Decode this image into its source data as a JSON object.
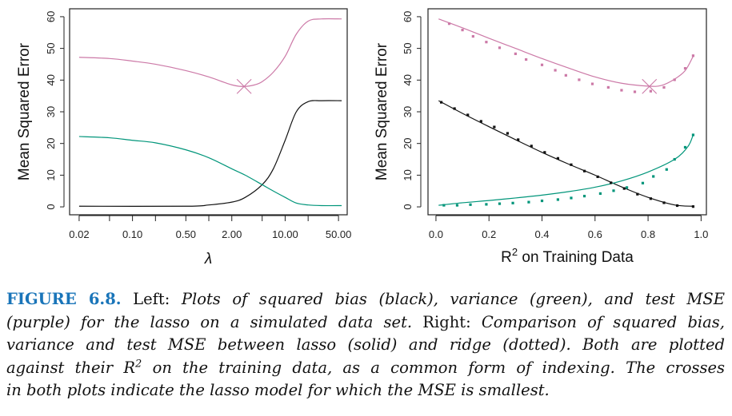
{
  "colors": {
    "bias": "#111111",
    "variance": "#00957a",
    "mse": "#cc79a7",
    "caption_label": "#1a75b9"
  },
  "chart_data": [
    {
      "type": "line",
      "name": "left",
      "xlabel": "λ",
      "ylabel": "Mean Squared Error",
      "xscale": "log",
      "xlim": [
        0.015,
        65
      ],
      "ylim": [
        -2.5,
        62.5
      ],
      "xticks": [
        {
          "v": 0.02,
          "label": "0.02"
        },
        {
          "v": 0.05,
          "label": ""
        },
        {
          "v": 0.1,
          "label": "0.10"
        },
        {
          "v": 0.2,
          "label": ""
        },
        {
          "v": 0.5,
          "label": "0.50"
        },
        {
          "v": 1,
          "label": ""
        },
        {
          "v": 2,
          "label": "2.00"
        },
        {
          "v": 5,
          "label": ""
        },
        {
          "v": 10,
          "label": "10.00"
        },
        {
          "v": 20,
          "label": ""
        },
        {
          "v": 50,
          "label": "50.00"
        }
      ],
      "yticks": [
        {
          "v": 0,
          "label": "0"
        },
        {
          "v": 10,
          "label": "10"
        },
        {
          "v": 20,
          "label": "20"
        },
        {
          "v": 30,
          "label": "30"
        },
        {
          "v": 40,
          "label": "40"
        },
        {
          "v": 50,
          "label": "50"
        },
        {
          "v": 60,
          "label": "60"
        }
      ],
      "series": [
        {
          "name": "Test MSE (lasso)",
          "color_key": "mse",
          "style": "solid",
          "points": [
            [
              0.02,
              47.2
            ],
            [
              0.05,
              46.8
            ],
            [
              0.1,
              46
            ],
            [
              0.2,
              45
            ],
            [
              0.5,
              43
            ],
            [
              1,
              41
            ],
            [
              2,
              38.5
            ],
            [
              2.9,
              38
            ],
            [
              4,
              38.5
            ],
            [
              5,
              39.5
            ],
            [
              7,
              42.5
            ],
            [
              10,
              47.5
            ],
            [
              14,
              54.5
            ],
            [
              20,
              58.6
            ],
            [
              30,
              59.3
            ],
            [
              55,
              59.3
            ]
          ]
        },
        {
          "name": "Squared bias (lasso)",
          "color_key": "bias",
          "style": "solid",
          "points": [
            [
              0.02,
              0.2
            ],
            [
              0.5,
              0.2
            ],
            [
              1,
              0.6
            ],
            [
              2,
              1.5
            ],
            [
              3,
              3
            ],
            [
              5,
              7
            ],
            [
              7,
              12
            ],
            [
              10,
              21
            ],
            [
              14,
              30
            ],
            [
              20,
              33.2
            ],
            [
              30,
              33.5
            ],
            [
              55,
              33.5
            ]
          ]
        },
        {
          "name": "Variance (lasso)",
          "color_key": "variance",
          "style": "solid",
          "points": [
            [
              0.02,
              22.2
            ],
            [
              0.05,
              21.8
            ],
            [
              0.1,
              21
            ],
            [
              0.2,
              20.2
            ],
            [
              0.5,
              18
            ],
            [
              1,
              15.5
            ],
            [
              2,
              12
            ],
            [
              3,
              10
            ],
            [
              5,
              7
            ],
            [
              7,
              5
            ],
            [
              10,
              3
            ],
            [
              14,
              1.2
            ],
            [
              20,
              0.6
            ],
            [
              30,
              0.4
            ],
            [
              55,
              0.4
            ]
          ]
        }
      ],
      "markers": [
        {
          "x": 2.9,
          "y": 38,
          "label": "min MSE",
          "color_key": "mse"
        }
      ]
    },
    {
      "type": "line",
      "name": "right",
      "xlabel": "R",
      "xlabel_sup": "2",
      "xlabel_rest": " on Training Data",
      "ylabel": "Mean Squared Error",
      "xscale": "linear",
      "xlim": [
        -0.03,
        1.02
      ],
      "ylim": [
        -2.5,
        62.5
      ],
      "xticks": [
        {
          "v": 0,
          "label": "0.0"
        },
        {
          "v": 0.2,
          "label": "0.2"
        },
        {
          "v": 0.4,
          "label": "0.4"
        },
        {
          "v": 0.6,
          "label": "0.6"
        },
        {
          "v": 0.8,
          "label": "0.8"
        },
        {
          "v": 1,
          "label": "1.0"
        }
      ],
      "yticks": [
        {
          "v": 0,
          "label": "0"
        },
        {
          "v": 10,
          "label": "10"
        },
        {
          "v": 20,
          "label": "20"
        },
        {
          "v": 30,
          "label": "30"
        },
        {
          "v": 40,
          "label": "40"
        },
        {
          "v": 50,
          "label": "50"
        },
        {
          "v": 60,
          "label": "60"
        }
      ],
      "series": [
        {
          "name": "Test MSE (lasso)",
          "color_key": "mse",
          "style": "solid",
          "points": [
            [
              0.01,
              59.3
            ],
            [
              0.1,
              56.5
            ],
            [
              0.2,
              53.2
            ],
            [
              0.3,
              50
            ],
            [
              0.4,
              46.8
            ],
            [
              0.5,
              43.8
            ],
            [
              0.6,
              41
            ],
            [
              0.7,
              39
            ],
            [
              0.8,
              38.1
            ],
            [
              0.85,
              38.3
            ],
            [
              0.9,
              40.3
            ],
            [
              0.94,
              43
            ],
            [
              0.97,
              47.5
            ]
          ]
        },
        {
          "name": "Squared bias (lasso)",
          "color_key": "bias",
          "style": "solid",
          "points": [
            [
              0.01,
              33.5
            ],
            [
              0.1,
              29.5
            ],
            [
              0.2,
              25.3
            ],
            [
              0.3,
              21.2
            ],
            [
              0.4,
              17.2
            ],
            [
              0.5,
              13.5
            ],
            [
              0.6,
              10
            ],
            [
              0.7,
              6.3
            ],
            [
              0.8,
              3
            ],
            [
              0.9,
              0.6
            ],
            [
              0.97,
              0.2
            ]
          ]
        },
        {
          "name": "Variance (lasso)",
          "color_key": "variance",
          "style": "solid",
          "points": [
            [
              0.01,
              0.5
            ],
            [
              0.1,
              1.3
            ],
            [
              0.2,
              2
            ],
            [
              0.3,
              2.8
            ],
            [
              0.4,
              3.7
            ],
            [
              0.5,
              4.8
            ],
            [
              0.6,
              6.2
            ],
            [
              0.7,
              8.2
            ],
            [
              0.8,
              11
            ],
            [
              0.9,
              15
            ],
            [
              0.95,
              19
            ],
            [
              0.97,
              22.7
            ]
          ]
        },
        {
          "name": "Test MSE (ridge)",
          "color_key": "mse",
          "style": "dotted",
          "points": [
            [
              0.05,
              57.8
            ],
            [
              0.1,
              55.8
            ],
            [
              0.14,
              53.8
            ],
            [
              0.19,
              52
            ],
            [
              0.24,
              50.2
            ],
            [
              0.3,
              48.3
            ],
            [
              0.34,
              46.5
            ],
            [
              0.4,
              44.8
            ],
            [
              0.45,
              43.1
            ],
            [
              0.49,
              41.5
            ],
            [
              0.54,
              40.1
            ],
            [
              0.59,
              38.8
            ],
            [
              0.65,
              37.7
            ],
            [
              0.7,
              36.8
            ],
            [
              0.75,
              36.3
            ],
            [
              0.81,
              36.5
            ],
            [
              0.86,
              37.7
            ],
            [
              0.9,
              40.1
            ],
            [
              0.94,
              43.7
            ],
            [
              0.97,
              47.7
            ]
          ]
        },
        {
          "name": "Squared bias (ridge)",
          "color_key": "bias",
          "style": "dotted",
          "points": [
            [
              0.02,
              33
            ],
            [
              0.07,
              31
            ],
            [
              0.12,
              29
            ],
            [
              0.17,
              27
            ],
            [
              0.22,
              25.2
            ],
            [
              0.27,
              23.2
            ],
            [
              0.31,
              21.2
            ],
            [
              0.36,
              19.2
            ],
            [
              0.41,
              17.2
            ],
            [
              0.46,
              15.3
            ],
            [
              0.51,
              13.3
            ],
            [
              0.56,
              11.3
            ],
            [
              0.61,
              9.5
            ],
            [
              0.66,
              7.6
            ],
            [
              0.71,
              5.8
            ],
            [
              0.76,
              4
            ],
            [
              0.81,
              2.6
            ],
            [
              0.86,
              1.3
            ],
            [
              0.91,
              0.4
            ],
            [
              0.97,
              0.1
            ]
          ]
        },
        {
          "name": "Variance (ridge)",
          "color_key": "variance",
          "style": "dotted",
          "points": [
            [
              0.03,
              0.5
            ],
            [
              0.08,
              0.5
            ],
            [
              0.13,
              0.7
            ],
            [
              0.19,
              0.8
            ],
            [
              0.24,
              1
            ],
            [
              0.29,
              1.2
            ],
            [
              0.35,
              1.5
            ],
            [
              0.4,
              1.9
            ],
            [
              0.46,
              2.3
            ],
            [
              0.51,
              2.8
            ],
            [
              0.56,
              3.4
            ],
            [
              0.62,
              4.2
            ],
            [
              0.67,
              5.1
            ],
            [
              0.72,
              6.1
            ],
            [
              0.78,
              7.5
            ],
            [
              0.82,
              9.6
            ],
            [
              0.87,
              11.8
            ],
            [
              0.9,
              15
            ],
            [
              0.94,
              18.8
            ],
            [
              0.97,
              22.7
            ]
          ]
        }
      ],
      "markers": [
        {
          "x": 0.805,
          "y": 38,
          "label": "min MSE",
          "color_key": "mse"
        }
      ]
    }
  ],
  "caption": {
    "label": "FIGURE 6.8.",
    "l1_a": " Left: ",
    "l1_b": "Plots of squared bias (black), variance (green), and test MSE",
    "l2_a": "(purple) for the lasso on a simulated data set.",
    "l2_b": " Right: ",
    "l2_c": "Comparison of squared bias,",
    "l3": "variance and test MSE between lasso (solid) and ridge (dotted). Both are plotted",
    "l4_a": "against their R",
    "l4_sup": "2",
    "l4_b": " on the training data, as a common form of indexing. The crosses",
    "l5": "in both plots indicate the lasso model for which the MSE is smallest."
  }
}
